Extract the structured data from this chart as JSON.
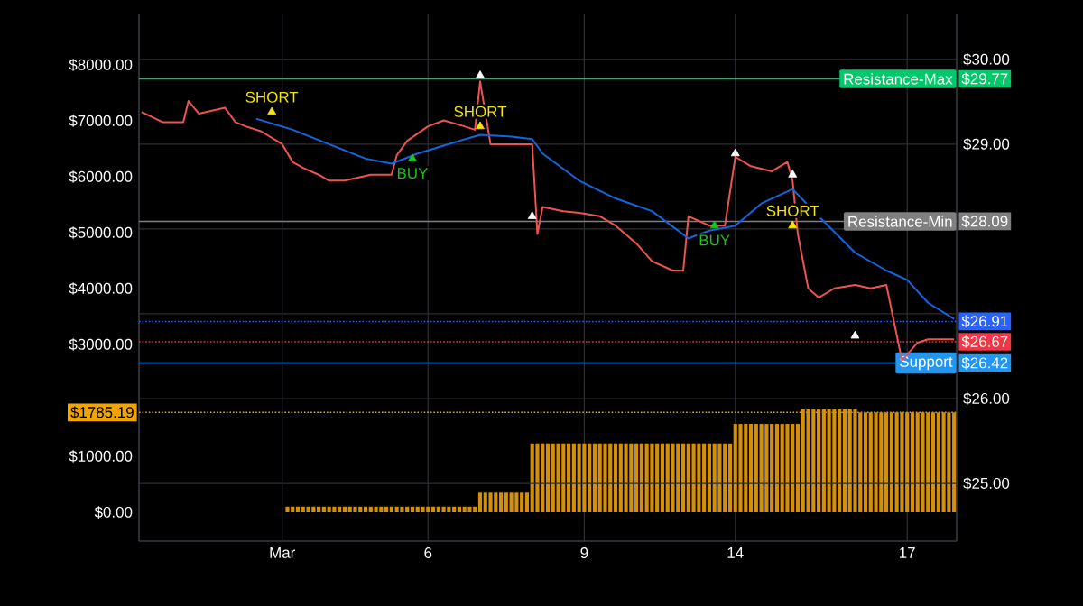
{
  "chart_data": {
    "type": "line",
    "categories": [
      null,
      null,
      null,
      null,
      null,
      null,
      null,
      null,
      null,
      null,
      null,
      null,
      null,
      null,
      null,
      null,
      null,
      null,
      null,
      null,
      null,
      null,
      null,
      null,
      null,
      null,
      null,
      "Mar",
      null,
      null,
      null,
      null,
      null,
      null,
      null,
      null,
      null,
      null,
      null,
      null,
      null,
      null,
      null,
      null,
      null,
      null,
      null,
      null,
      null,
      null,
      null,
      null,
      null,
      null,
      null,
      "6",
      null,
      null,
      null,
      null,
      null,
      null,
      null,
      null,
      null,
      null,
      null,
      null,
      null,
      null,
      null,
      null,
      null,
      null,
      null,
      null,
      null,
      null,
      null,
      null,
      null,
      null,
      null,
      null,
      null,
      "9",
      null,
      null,
      null,
      null,
      null,
      null,
      null,
      null,
      null,
      null,
      null,
      null,
      null,
      null,
      null,
      null,
      null,
      null,
      null,
      null,
      null,
      null,
      null,
      null,
      null,
      null,
      null,
      null,
      "14",
      null,
      null,
      null,
      null,
      null,
      null,
      null,
      null,
      null,
      null,
      null,
      null,
      null,
      null,
      null,
      null,
      null,
      null,
      null,
      null,
      null,
      null,
      null,
      null,
      null,
      null,
      null,
      null,
      null,
      null,
      null,
      null,
      "17",
      null,
      null,
      null,
      null,
      null,
      null,
      null,
      null,
      null
    ],
    "ylim": [
      -516,
      8903
    ],
    "yticks": [
      {
        "value": 0,
        "label": "$0.00"
      },
      {
        "value": 1000,
        "label": "$1000.00"
      },
      {
        "value": 1785.19,
        "label": "$1785.19"
      },
      {
        "value": 3000,
        "label": "$3000.00"
      },
      {
        "value": 4000,
        "label": "$4000.00"
      },
      {
        "value": 5000,
        "label": "$5000.00"
      },
      {
        "value": 6000,
        "label": "$6000.00"
      },
      {
        "value": 7000,
        "label": "$7000.00"
      },
      {
        "value": 8000,
        "label": "$8000.00"
      }
    ],
    "y2lim": [
      24.32,
      30.53
    ],
    "y2ticks": [
      {
        "value": 25,
        "label": "$25.00"
      },
      {
        "value": 26,
        "label": "$26.00"
      },
      {
        "value": 26.42,
        "label": "$26.42"
      },
      {
        "value": 26.67,
        "label": "$26.67"
      },
      {
        "value": 26.91,
        "label": "$26.91"
      },
      {
        "value": 27,
        "label": null
      },
      {
        "value": 28,
        "label": null
      },
      {
        "value": 28.09,
        "label": "$28.09"
      },
      {
        "value": 29,
        "label": "$29.00"
      },
      {
        "value": 29.77,
        "label": "$29.77"
      },
      {
        "value": 30,
        "label": "$30.00"
      }
    ],
    "grid": true,
    "series": [
      {
        "type": "bar",
        "color": "#d39008",
        "values": [
          null,
          null,
          null,
          null,
          null,
          null,
          null,
          null,
          null,
          null,
          null,
          null,
          null,
          null,
          null,
          null,
          null,
          null,
          null,
          null,
          null,
          null,
          null,
          null,
          null,
          null,
          null,
          null,
          100,
          100,
          100,
          100,
          100,
          100,
          100,
          100,
          100,
          100,
          100,
          100,
          100,
          100,
          100,
          100,
          100,
          100,
          100,
          100,
          100,
          100,
          100,
          100,
          100,
          100,
          100,
          100,
          100,
          100,
          100,
          100,
          100,
          100,
          100,
          100,
          100,
          350,
          350,
          350,
          350,
          350,
          350,
          350,
          350,
          350,
          350,
          1230,
          1230,
          1230,
          1230,
          1230,
          1230,
          1230,
          1230,
          1230,
          1230,
          1230,
          1230,
          1230,
          1230,
          1230,
          1230,
          1230,
          1230,
          1230,
          1230,
          1230,
          1230,
          1230,
          1230,
          1230,
          1230,
          1230,
          1230,
          1230,
          1230,
          1230,
          1230,
          1230,
          1230,
          1230,
          1230,
          1230,
          1230,
          1230,
          1580,
          1580,
          1580,
          1580,
          1580,
          1580,
          1580,
          1580,
          1580,
          1580,
          1580,
          1580,
          1580,
          1840,
          1840,
          1840,
          1840,
          1840,
          1840,
          1840,
          1840,
          1840,
          1840,
          1840,
          1785.19,
          1785.19,
          1785.19,
          1785.19,
          1785.19,
          1785.19,
          1785.19,
          1785.19,
          1785.19,
          1785.19,
          1785.19,
          1785.19,
          1785.19,
          1785.19,
          1785.19,
          1785.19,
          1785.19,
          1785.19,
          1785.19
        ]
      },
      {
        "axis": "y2",
        "color": "#ef5350",
        "values": [
          29.38,
          null,
          null,
          null,
          29.26,
          null,
          null,
          null,
          29.26,
          29.51,
          null,
          29.36,
          null,
          null,
          null,
          null,
          29.43,
          null,
          29.26,
          null,
          29.21,
          null,
          null,
          29.15,
          null,
          null,
          null,
          29.0,
          null,
          28.79,
          null,
          28.72,
          null,
          null,
          28.64,
          null,
          28.57,
          null,
          null,
          28.57,
          null,
          null,
          null,
          null,
          28.64,
          null,
          null,
          null,
          28.64,
          28.87,
          null,
          29.04,
          null,
          null,
          null,
          29.21,
          null,
          null,
          29.28,
          null,
          null,
          null,
          29.21,
          null,
          29.17,
          29.74,
          null,
          29.0,
          null,
          null,
          null,
          null,
          29.0,
          null,
          null,
          29.0,
          27.94,
          28.26,
          null,
          null,
          null,
          28.21,
          null,
          null,
          28.19,
          null,
          null,
          null,
          28.15,
          null,
          null,
          28.04,
          null,
          null,
          null,
          27.83,
          null,
          null,
          27.62,
          null,
          null,
          null,
          27.51,
          null,
          27.51,
          28.15,
          null,
          null,
          null,
          28.04,
          null,
          null,
          28.04,
          null,
          28.85,
          null,
          null,
          28.74,
          null,
          null,
          null,
          28.68,
          null,
          null,
          28.79,
          28.57,
          27.94,
          null,
          27.3,
          null,
          27.19,
          null,
          null,
          27.3,
          null,
          null,
          null,
          27.34,
          null,
          null,
          27.3,
          null,
          null,
          27.34,
          null,
          null,
          26.45,
          null,
          null,
          26.66,
          null,
          26.7,
          null,
          null,
          null,
          null,
          26.7
        ]
      },
      {
        "axis": "y2",
        "color": "#1565e0",
        "values": [
          null,
          null,
          null,
          null,
          null,
          null,
          null,
          null,
          null,
          null,
          null,
          null,
          null,
          null,
          null,
          null,
          null,
          null,
          null,
          null,
          null,
          null,
          29.3,
          null,
          null,
          null,
          null,
          null,
          null,
          29.17,
          null,
          null,
          null,
          null,
          null,
          null,
          29.0,
          null,
          null,
          null,
          null,
          null,
          null,
          28.83,
          null,
          null,
          null,
          null,
          28.77,
          null,
          null,
          null,
          null,
          28.89,
          null,
          null,
          null,
          null,
          null,
          null,
          29.02,
          null,
          null,
          null,
          null,
          29.11,
          null,
          null,
          null,
          null,
          null,
          29.09,
          null,
          null,
          null,
          29.06,
          null,
          28.89,
          null,
          null,
          null,
          null,
          null,
          null,
          28.57,
          null,
          null,
          null,
          null,
          null,
          null,
          28.36,
          null,
          null,
          null,
          null,
          null,
          null,
          28.21,
          null,
          null,
          null,
          null,
          null,
          null,
          27.89,
          null,
          null,
          null,
          27.98,
          null,
          null,
          null,
          null,
          28.04,
          null,
          null,
          null,
          null,
          28.3,
          null,
          null,
          null,
          null,
          null,
          28.47,
          null,
          null,
          null,
          null,
          28.15,
          null,
          null,
          null,
          null,
          null,
          null,
          27.72,
          null,
          null,
          null,
          null,
          null,
          27.51,
          null,
          null,
          null,
          27.4,
          null,
          null,
          null,
          27.13,
          null,
          null,
          null,
          null,
          26.94
        ]
      },
      {
        "type": "scatter",
        "axis": "y2",
        "marker": "triangle",
        "colors": [
          null,
          null,
          null,
          null,
          null,
          null,
          null,
          null,
          null,
          null,
          null,
          null,
          null,
          null,
          null,
          null,
          null,
          null,
          null,
          null,
          null,
          null,
          null,
          null,
          null,
          "#f5e50a",
          null,
          null,
          null,
          null,
          null,
          null,
          null,
          null,
          null,
          null,
          null,
          null,
          null,
          null,
          null,
          null,
          null,
          null,
          null,
          null,
          null,
          null,
          null,
          null,
          null,
          null,
          "#1ec21e",
          null,
          null,
          null,
          null,
          null,
          null,
          null,
          null,
          null,
          null,
          null,
          null,
          "#f5e50a",
          null,
          null,
          null,
          null,
          null,
          null,
          null,
          null,
          null,
          null,
          null,
          null,
          null,
          null,
          null,
          null,
          null,
          null,
          null,
          null,
          null,
          null,
          null,
          null,
          null,
          null,
          null,
          null,
          null,
          null,
          null,
          null,
          null,
          null,
          null,
          null,
          null,
          null,
          null,
          null,
          null,
          null,
          null,
          null,
          "#1ec21e",
          null,
          null,
          null,
          null,
          null,
          null,
          null,
          null,
          null,
          null,
          null,
          null,
          null,
          null,
          "#f5e50a",
          null,
          null,
          null,
          null,
          null,
          null,
          null,
          null,
          null,
          null,
          null,
          null,
          null,
          null,
          null,
          null,
          null,
          null,
          null,
          null,
          null,
          null,
          null,
          null,
          null,
          null,
          null,
          null,
          null,
          null,
          null
        ],
        "values": [
          null,
          null,
          null,
          null,
          null,
          null,
          null,
          null,
          null,
          null,
          null,
          null,
          null,
          null,
          null,
          null,
          null,
          null,
          null,
          null,
          null,
          null,
          null,
          null,
          null,
          29.38,
          null,
          null,
          null,
          null,
          null,
          null,
          null,
          null,
          null,
          null,
          null,
          null,
          null,
          null,
          null,
          null,
          null,
          null,
          null,
          null,
          null,
          null,
          null,
          null,
          null,
          null,
          28.83,
          null,
          null,
          null,
          null,
          null,
          null,
          null,
          null,
          null,
          null,
          null,
          null,
          29.21,
          null,
          null,
          null,
          null,
          null,
          null,
          null,
          null,
          null,
          null,
          null,
          null,
          null,
          null,
          null,
          null,
          null,
          null,
          null,
          null,
          null,
          null,
          null,
          null,
          null,
          null,
          null,
          null,
          null,
          null,
          null,
          null,
          null,
          null,
          null,
          null,
          null,
          null,
          null,
          null,
          null,
          null,
          null,
          null,
          28.04,
          null,
          null,
          null,
          null,
          null,
          null,
          null,
          null,
          null,
          null,
          null,
          null,
          null,
          null,
          28.04,
          null,
          null,
          null,
          null,
          null,
          null,
          null,
          null,
          null,
          null,
          null,
          null,
          null,
          null,
          null,
          null,
          null,
          null,
          null,
          null,
          null,
          null,
          null,
          null,
          null,
          null,
          null,
          null,
          null,
          null,
          null
        ]
      },
      {
        "type": "scatter",
        "axis": "y2",
        "marker": "triangle",
        "color": "#ffffff",
        "values": [
          null,
          null,
          null,
          null,
          null,
          null,
          null,
          null,
          null,
          null,
          null,
          null,
          null,
          null,
          null,
          null,
          null,
          null,
          null,
          null,
          null,
          null,
          null,
          null,
          null,
          null,
          null,
          null,
          null,
          null,
          null,
          null,
          null,
          null,
          null,
          null,
          null,
          null,
          null,
          null,
          null,
          null,
          null,
          null,
          null,
          null,
          null,
          null,
          null,
          null,
          null,
          null,
          null,
          null,
          null,
          null,
          null,
          null,
          null,
          null,
          null,
          null,
          null,
          null,
          null,
          29.81,
          null,
          null,
          null,
          null,
          null,
          null,
          null,
          null,
          null,
          28.15,
          null,
          null,
          null,
          null,
          null,
          null,
          null,
          null,
          null,
          null,
          null,
          null,
          null,
          null,
          null,
          null,
          null,
          null,
          null,
          null,
          null,
          null,
          null,
          null,
          null,
          null,
          null,
          null,
          null,
          null,
          null,
          null,
          null,
          null,
          null,
          null,
          null,
          null,
          28.89,
          null,
          null,
          null,
          null,
          null,
          null,
          null,
          null,
          null,
          null,
          28.64,
          null,
          null,
          null,
          null,
          null,
          null,
          null,
          null,
          null,
          null,
          null,
          26.74,
          null,
          null,
          null,
          null,
          null,
          null,
          null,
          null,
          null,
          null,
          null,
          null,
          null,
          null,
          null,
          null,
          null,
          null,
          null
        ]
      }
    ],
    "ref_lines": [
      {
        "axis": "y2",
        "value": 29.77,
        "label": "Resistance-Max",
        "color": "#00c96a",
        "line_style": "solid"
      },
      {
        "axis": "y2",
        "value": 28.09,
        "label": "Resistance-Min",
        "color": "#7f7f7f",
        "line_style": "solid"
      },
      {
        "axis": "y2",
        "value": 26.91,
        "color": "#2962ff",
        "line_style": "dotted"
      },
      {
        "axis": "y2",
        "value": 26.67,
        "color": "#f23645",
        "line_style": "dotted"
      },
      {
        "axis": "y2",
        "value": 26.42,
        "label": "Support",
        "color": "#2196f3",
        "line_style": "solid"
      },
      {
        "axis": "y",
        "value": 1785.19,
        "color": "#f0a500",
        "line_style": "dotted"
      }
    ],
    "annotations": [
      "SHORT",
      "BUY",
      "SHORT",
      "BUY",
      "SHORT"
    ]
  }
}
